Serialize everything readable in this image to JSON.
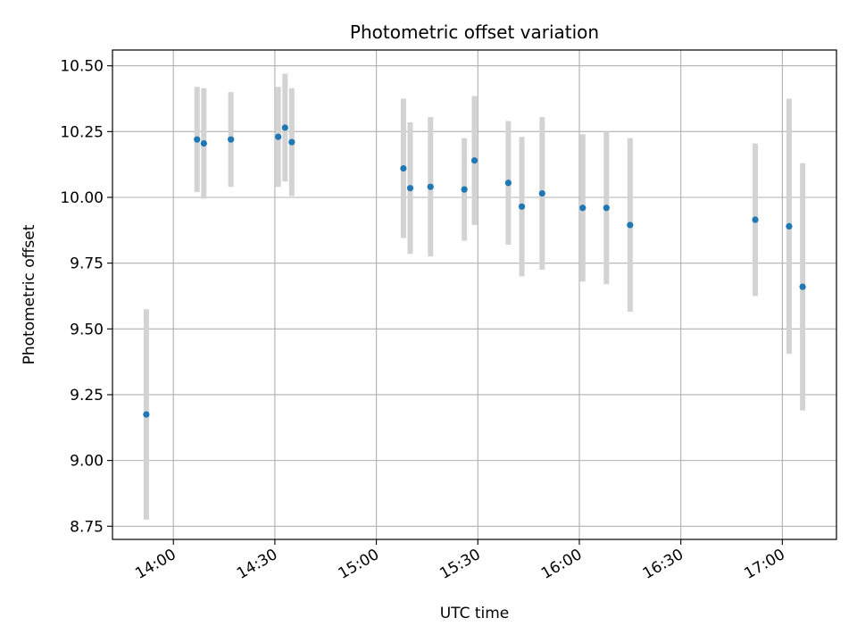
{
  "chart_data": {
    "type": "scatter",
    "title": "Photometric offset variation",
    "xlabel": "UTC time",
    "ylabel": "Photometric offset",
    "x_is_time": true,
    "xlim": [
      "13:42",
      "17:16"
    ],
    "ylim": [
      8.7,
      10.56
    ],
    "x_ticks": [
      "14:00",
      "14:30",
      "15:00",
      "15:30",
      "16:00",
      "16:30",
      "17:00"
    ],
    "y_ticks": [
      8.75,
      9.0,
      9.25,
      9.5,
      9.75,
      10.0,
      10.25,
      10.5
    ],
    "y_tick_labels": [
      "8.75",
      "9.00",
      "9.25",
      "9.50",
      "9.75",
      "10.00",
      "10.25",
      "10.50"
    ],
    "grid": true,
    "colors": {
      "points": "#1f77b4",
      "error_bars": "#d3d3d3",
      "grid": "#b0b0b0"
    },
    "points": [
      {
        "time": "13:52",
        "y": 9.175,
        "err": 0.4
      },
      {
        "time": "14:07",
        "y": 10.22,
        "err": 0.2
      },
      {
        "time": "14:09",
        "y": 10.205,
        "err": 0.21
      },
      {
        "time": "14:17",
        "y": 10.22,
        "err": 0.18
      },
      {
        "time": "14:31",
        "y": 10.23,
        "err": 0.19
      },
      {
        "time": "14:33",
        "y": 10.265,
        "err": 0.205
      },
      {
        "time": "14:35",
        "y": 10.21,
        "err": 0.205
      },
      {
        "time": "15:08",
        "y": 10.11,
        "err": 0.265
      },
      {
        "time": "15:10",
        "y": 10.035,
        "err": 0.25
      },
      {
        "time": "15:16",
        "y": 10.04,
        "err": 0.265
      },
      {
        "time": "15:26",
        "y": 10.03,
        "err": 0.195
      },
      {
        "time": "15:29",
        "y": 10.14,
        "err": 0.245
      },
      {
        "time": "15:39",
        "y": 10.055,
        "err": 0.235
      },
      {
        "time": "15:43",
        "y": 9.965,
        "err": 0.265
      },
      {
        "time": "15:49",
        "y": 10.015,
        "err": 0.29
      },
      {
        "time": "16:01",
        "y": 9.96,
        "err": 0.28
      },
      {
        "time": "16:08",
        "y": 9.96,
        "err": 0.29
      },
      {
        "time": "16:15",
        "y": 9.895,
        "err": 0.33
      },
      {
        "time": "16:52",
        "y": 9.915,
        "err": 0.29
      },
      {
        "time": "17:02",
        "y": 9.89,
        "err": 0.485
      },
      {
        "time": "17:06",
        "y": 9.66,
        "err": 0.47
      }
    ]
  }
}
